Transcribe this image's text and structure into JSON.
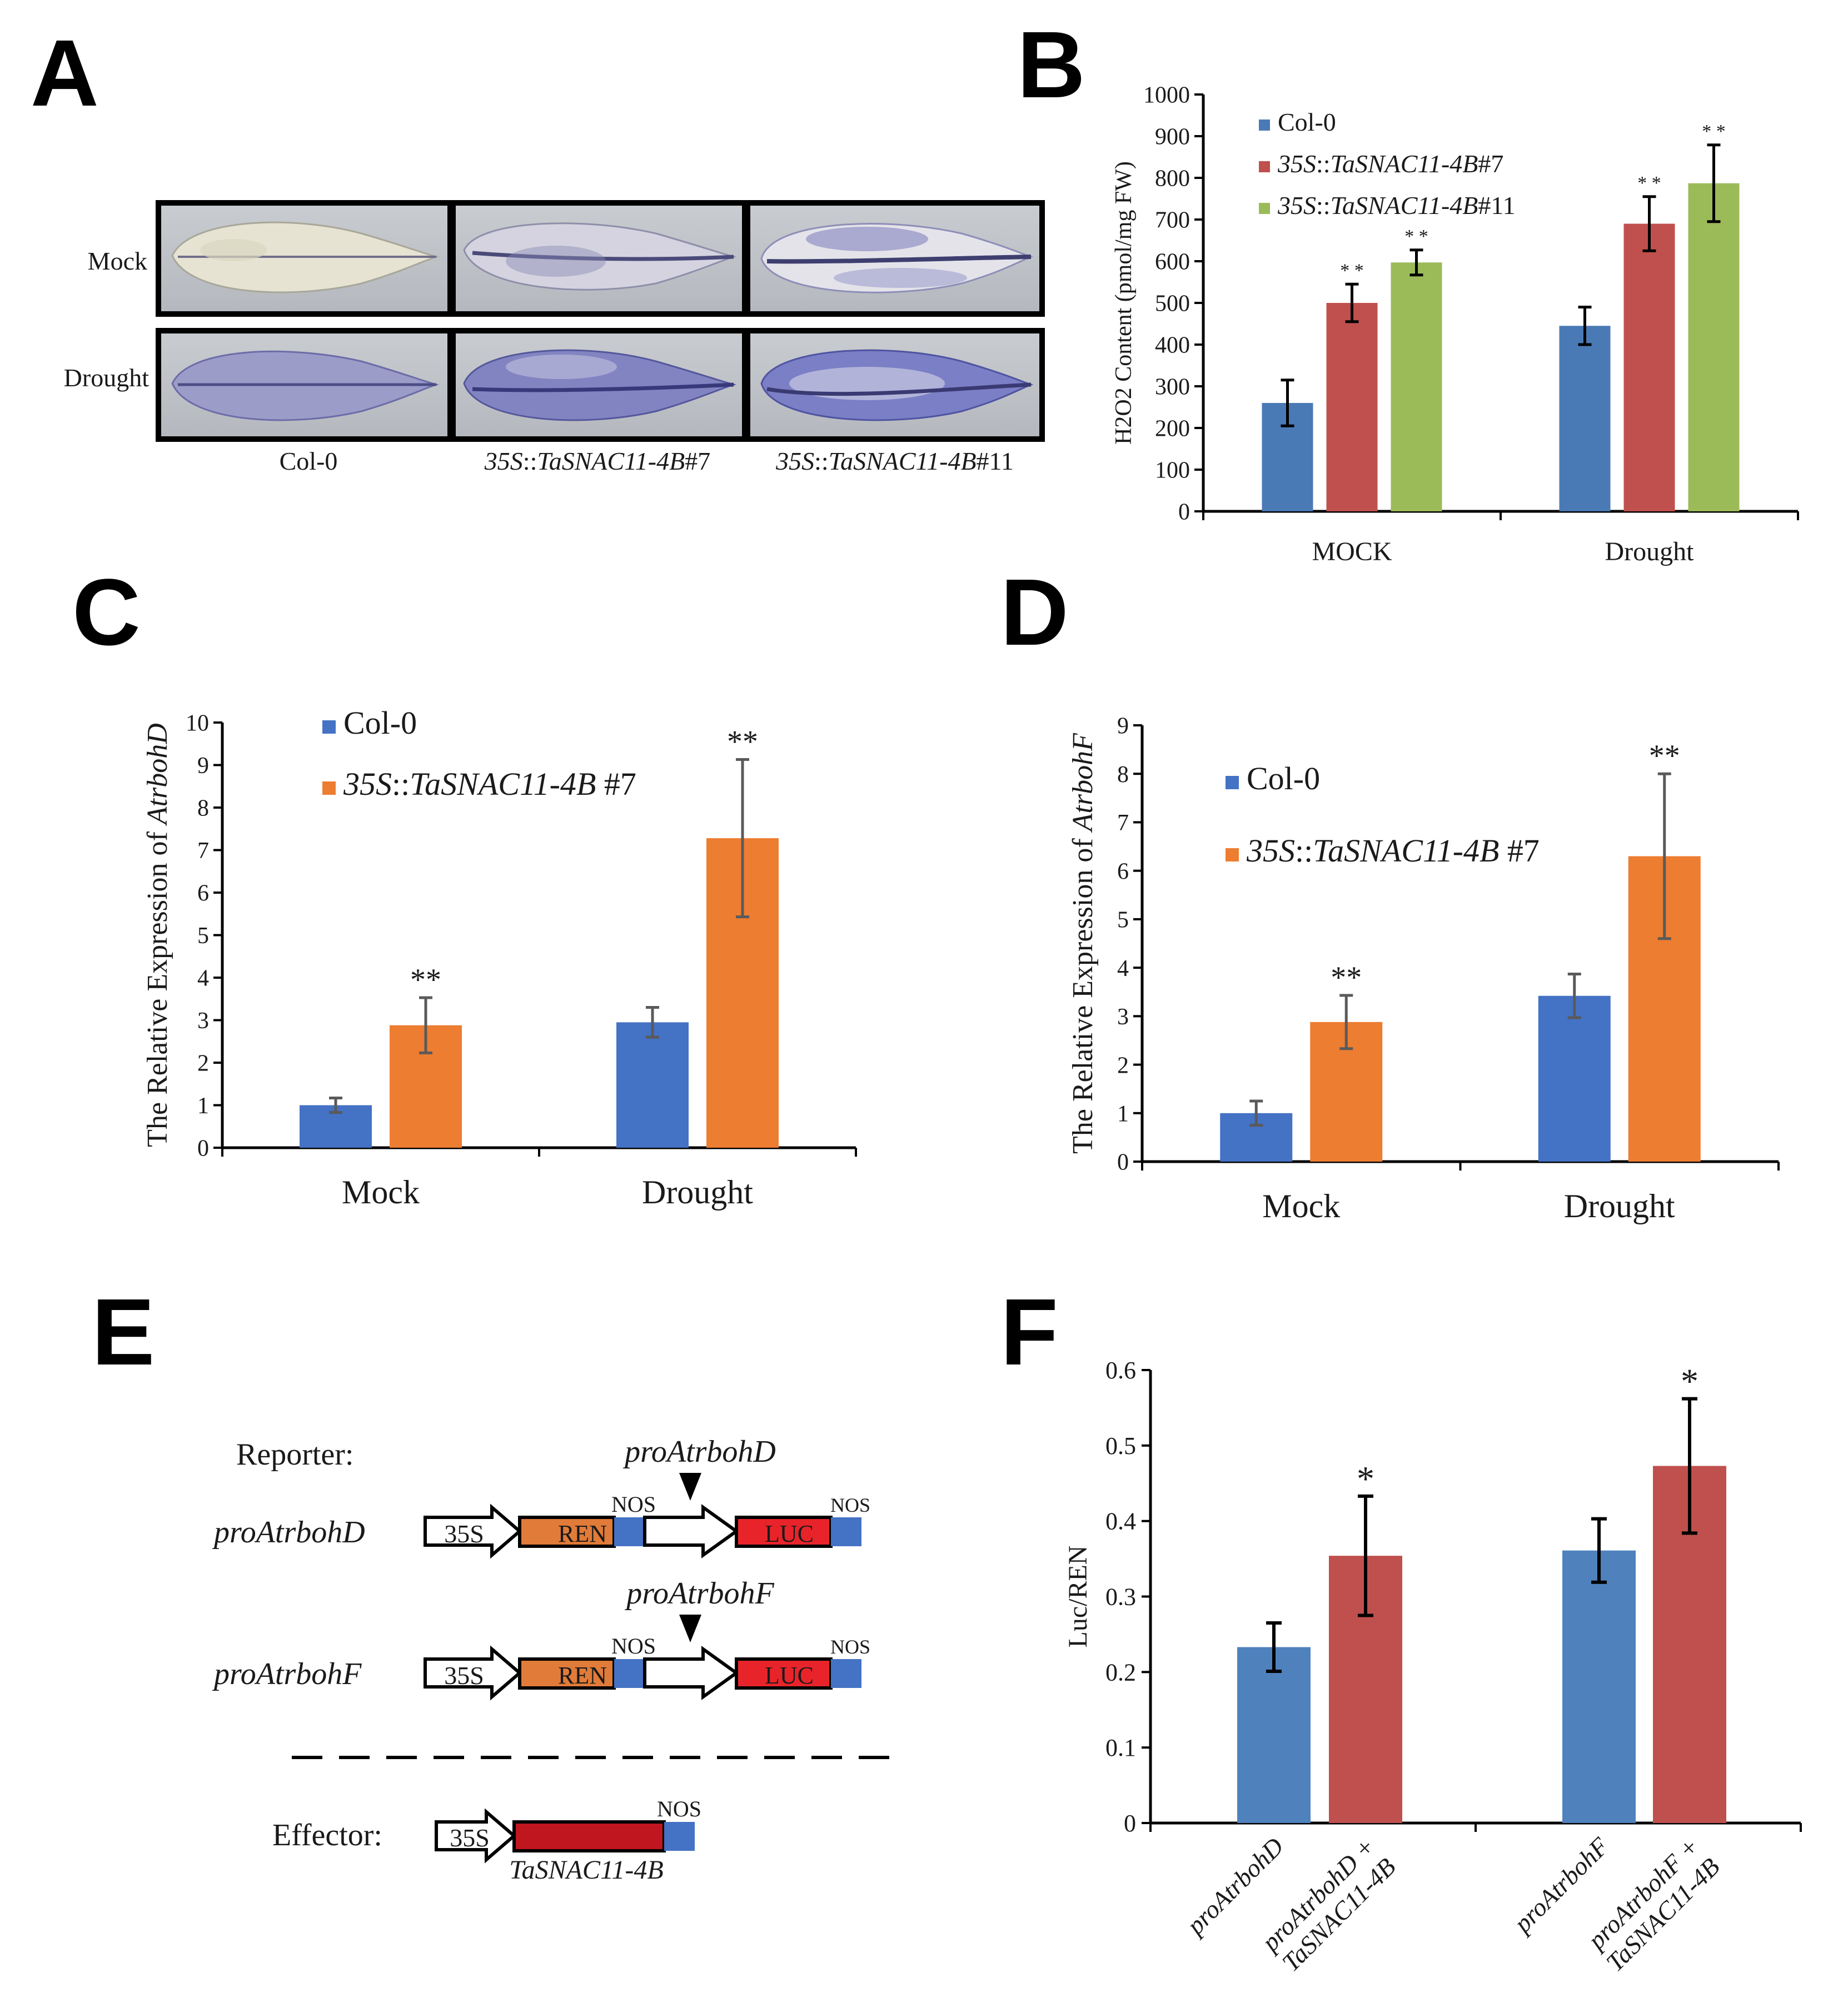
{
  "figure": {
    "panel_labels": [
      "A",
      "B",
      "C",
      "D",
      "E",
      "F"
    ],
    "colors": {
      "blue": "#4a7ab5",
      "red": "#c0504d",
      "green": "#9bbb59",
      "c_blue": "#4472c4",
      "c_orange": "#ed7d31",
      "f_blue": "#4f81bd",
      "f_red": "#c0504d",
      "ren": "#e07b39",
      "luc": "#e8242a",
      "nos": "#4472c4",
      "effector": "#c0161f"
    }
  },
  "panel_a": {
    "row_labels": [
      "Mock",
      "Drought"
    ],
    "col_labels": [
      {
        "pre": "",
        "italic": "",
        "post": "Col-0"
      },
      {
        "pre": "",
        "italic": "35S",
        "mid": "::",
        "italic2": "TaSNAC11-4B",
        "post": "#7"
      },
      {
        "pre": "",
        "italic": "35S",
        "mid": "::",
        "italic2": "TaSNAC11-4B",
        "post": "#11"
      }
    ]
  },
  "panel_e": {
    "reporter_label": "Reporter:",
    "effector_label": "Effector:",
    "constructs": [
      {
        "name": "proAtrbohD",
        "promoter": "proAtrbohD"
      },
      {
        "name": "proAtrbohF",
        "promoter": "proAtrbohF"
      }
    ],
    "box_35s": "35S",
    "box_ren": "REN",
    "box_luc": "LUC",
    "nos": "NOS",
    "effector_gene": "TaSNAC11-4B"
  },
  "chart_data": [
    {
      "id": "B",
      "type": "bar",
      "title": "",
      "ylabel": "H2O2 Content  (pmol/mg FW)",
      "xlabel": "",
      "ylim": [
        0,
        1000
      ],
      "yticks": [
        0,
        100,
        200,
        300,
        400,
        500,
        600,
        700,
        800,
        900,
        1000
      ],
      "categories": [
        "MOCK",
        "Drought"
      ],
      "legend_position": "top-left",
      "series": [
        {
          "name": "Col-0",
          "values": [
            260,
            445
          ],
          "errors": [
            55,
            45
          ],
          "sig": [
            "",
            ""
          ]
        },
        {
          "name": "35S::TaSNAC11-4B#7",
          "values": [
            500,
            690
          ],
          "errors": [
            45,
            65
          ],
          "sig": [
            "* *",
            "* *"
          ]
        },
        {
          "name": "35S::TaSNAC11-4B#11",
          "values": [
            597,
            787
          ],
          "errors": [
            30,
            92
          ],
          "sig": [
            "* *",
            "* *"
          ]
        }
      ]
    },
    {
      "id": "C",
      "type": "bar",
      "title": "",
      "ylabel": "The Relative Expression of AtrbohD",
      "xlabel": "",
      "ylim": [
        0,
        10
      ],
      "yticks": [
        0,
        1,
        2,
        3,
        4,
        5,
        6,
        7,
        8,
        9,
        10
      ],
      "categories": [
        "Mock",
        "Drought"
      ],
      "legend_position": "top-left",
      "series": [
        {
          "name": "Col-0",
          "values": [
            1.0,
            2.95
          ],
          "errors": [
            0.17,
            0.35
          ],
          "sig": [
            "",
            ""
          ]
        },
        {
          "name": "35S::TaSNAC11-4B #7",
          "values": [
            2.88,
            7.28
          ],
          "errors": [
            0.65,
            1.85
          ],
          "sig": [
            "**",
            "**"
          ]
        }
      ]
    },
    {
      "id": "D",
      "type": "bar",
      "title": "",
      "ylabel": "The Relative Expression of AtrbohF",
      "xlabel": "",
      "ylim": [
        0,
        9
      ],
      "yticks": [
        0,
        1,
        2,
        3,
        4,
        5,
        6,
        7,
        8,
        9
      ],
      "categories": [
        "Mock",
        "Drought"
      ],
      "legend_position": "top-left",
      "series": [
        {
          "name": "Col-0",
          "values": [
            1.0,
            3.42
          ],
          "errors": [
            0.25,
            0.45
          ],
          "sig": [
            "",
            ""
          ]
        },
        {
          "name": "35S::TaSNAC11-4B #7",
          "values": [
            2.88,
            6.3
          ],
          "errors": [
            0.55,
            1.7
          ],
          "sig": [
            "**",
            "**"
          ]
        }
      ]
    },
    {
      "id": "F",
      "type": "bar",
      "title": "",
      "ylabel": "Luc/REN",
      "xlabel": "",
      "ylim": [
        0,
        0.6
      ],
      "yticks": [
        0,
        0.1,
        0.2,
        0.3,
        0.4,
        0.5,
        0.6
      ],
      "ytick_labels": [
        "0",
        "0.1",
        "0.2",
        "0.3",
        "0.4",
        "0.5",
        "0.6"
      ],
      "categories": [
        "proAtrbohD",
        "proAtrbohD + TaSNAC11-4B",
        "proAtrbohF",
        "proAtrbohF + TaSNAC11-4B"
      ],
      "category_lines": [
        [
          "proAtrbohD"
        ],
        [
          "proAtrbohD +",
          "TaSNAC11-4B"
        ],
        [
          "proAtrbohF"
        ],
        [
          "proAtrbohF +",
          "TaSNAC11-4B"
        ]
      ],
      "values": [
        0.233,
        0.354,
        0.361,
        0.473
      ],
      "errors": [
        0.032,
        0.079,
        0.042,
        0.089
      ],
      "sig": [
        "",
        "*",
        "",
        "*"
      ],
      "bar_colors": [
        "#4f81bd",
        "#c0504d",
        "#4f81bd",
        "#c0504d"
      ]
    }
  ]
}
